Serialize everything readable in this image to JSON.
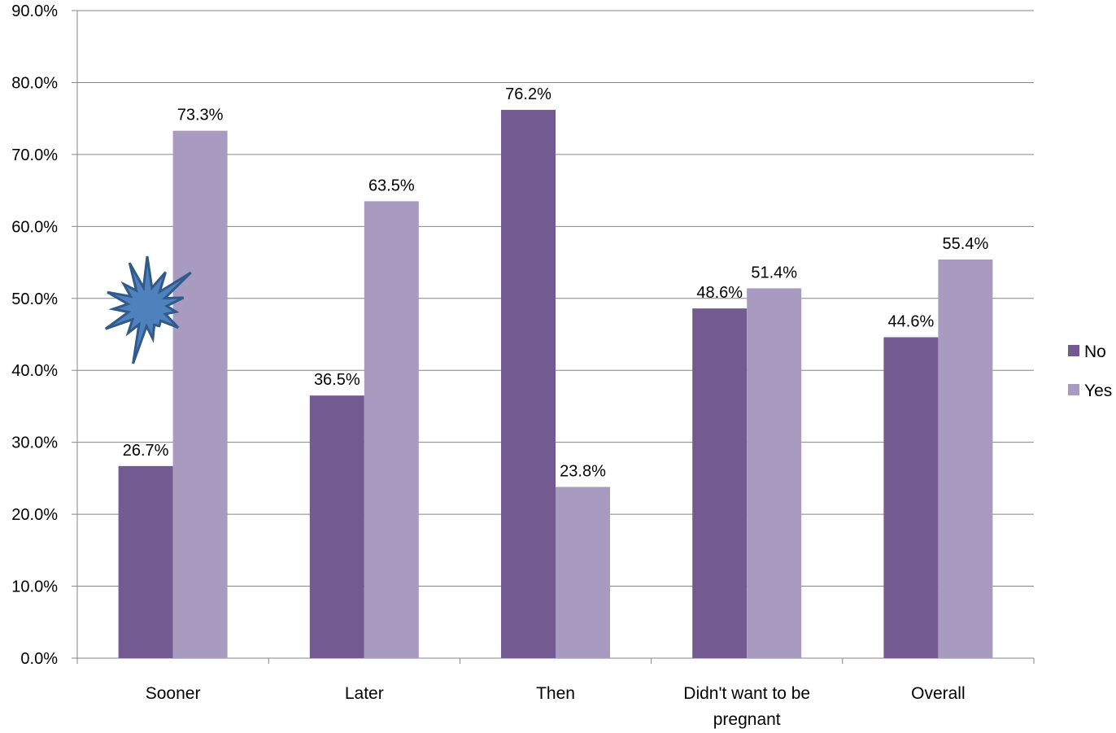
{
  "chart_data": {
    "type": "bar",
    "title": "",
    "xlabel": "",
    "ylabel": "",
    "ylim": [
      0,
      90
    ],
    "y_ticks": [
      "0.0%",
      "10.0%",
      "20.0%",
      "30.0%",
      "40.0%",
      "50.0%",
      "60.0%",
      "70.0%",
      "80.0%",
      "90.0%"
    ],
    "categories": [
      "Sooner",
      "Later",
      "Then",
      "Didn't want to be pregnant",
      "Overall"
    ],
    "category_lines": [
      [
        "Sooner"
      ],
      [
        "Later"
      ],
      [
        "Then"
      ],
      [
        "Didn't want to be",
        "pregnant"
      ],
      [
        "Overall"
      ]
    ],
    "series": [
      {
        "name": "No",
        "color": "#735b91",
        "values": [
          26.7,
          36.5,
          76.2,
          48.6,
          44.6
        ],
        "labels": [
          "26.7%",
          "36.5%",
          "76.2%",
          "48.6%",
          "44.6%"
        ]
      },
      {
        "name": "Yes",
        "color": "#a99bc0",
        "values": [
          73.3,
          63.5,
          23.8,
          51.4,
          55.4
        ],
        "labels": [
          "73.3%",
          "63.5%",
          "23.8%",
          "51.4%",
          "55.4%"
        ]
      }
    ],
    "grid": true,
    "legend_position": "right",
    "annotation_shape": {
      "kind": "starburst",
      "color": "#4f81bd",
      "near_category": "Sooner"
    }
  }
}
